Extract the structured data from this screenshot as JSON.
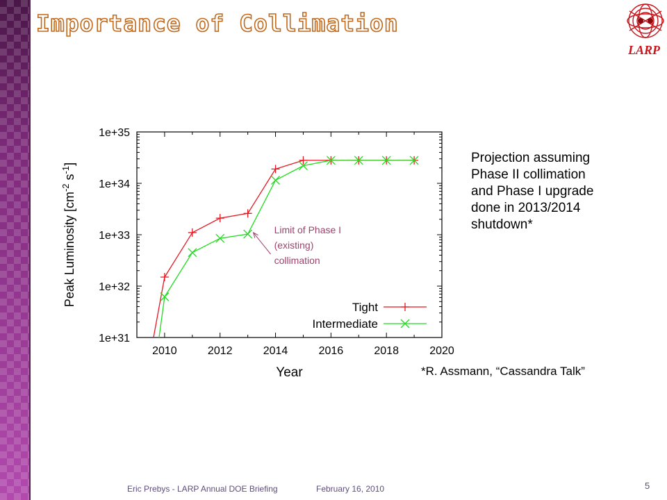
{
  "slide": {
    "title": "Importance of Collimation",
    "logo_text": "LARP",
    "projection_lines": [
      "Projection assuming",
      "Phase II collimation",
      "and Phase I upgrade",
      "done in 2013/2014",
      "shutdown*"
    ],
    "reference": "*R. Assmann, “Cassandra Talk”",
    "footer_left": "Eric Prebys - LARP Annual DOE Briefing",
    "footer_date": "February 16, 2010",
    "page_number": "5"
  },
  "colors": {
    "sidebar": "#8a2d86",
    "title_outline": "#c06a1e",
    "tight": "#e8141e",
    "intermediate": "#1edc1e",
    "annotation": "#a0406e"
  },
  "chart_data": {
    "type": "line",
    "xlabel": "Year",
    "ylabel": "Peak Luminosity [cm",
    "ylabel_sup1": "-2",
    "ylabel_mid": " s",
    "ylabel_sup2": "-1",
    "ylabel_end": "]",
    "xlim": [
      2009,
      2020
    ],
    "ylim": [
      1e+31,
      1e+35
    ],
    "yscale": "log",
    "xticks": [
      2010,
      2012,
      2014,
      2016,
      2018,
      2020
    ],
    "yticks": [
      "1e+31",
      "1e+32",
      "1e+33",
      "1e+34",
      "1e+35"
    ],
    "ytick_values": [
      1e+31,
      1e+32,
      1e+33,
      1e+34,
      1e+35
    ],
    "legend_position": "bottom-right",
    "annotation": {
      "lines": [
        "Limit of Phase I",
        "(existing)",
        "collimation"
      ],
      "arrow_target": [
        2013.2,
        1.1e+33
      ]
    },
    "series": [
      {
        "name": "Tight",
        "marker": "plus",
        "x": [
          2009.6,
          2010,
          2011,
          2012,
          2013,
          2014,
          2015,
          2016,
          2017,
          2018,
          2019
        ],
        "y": [
          1e+31,
          1.5e+32,
          1.1e+33,
          2.1e+33,
          2.6e+33,
          1.9e+34,
          2.8e+34,
          2.8e+34,
          2.8e+34,
          2.8e+34,
          2.8e+34
        ]
      },
      {
        "name": "Intermediate",
        "marker": "x",
        "x": [
          2009.8,
          2010,
          2011,
          2012,
          2013,
          2014,
          2015,
          2016,
          2017,
          2018,
          2019
        ],
        "y": [
          1e+31,
          6.2e+31,
          4.5e+32,
          8.5e+32,
          1.03e+33,
          1.15e+34,
          2.2e+34,
          2.8e+34,
          2.8e+34,
          2.8e+34,
          2.8e+34
        ]
      }
    ]
  }
}
